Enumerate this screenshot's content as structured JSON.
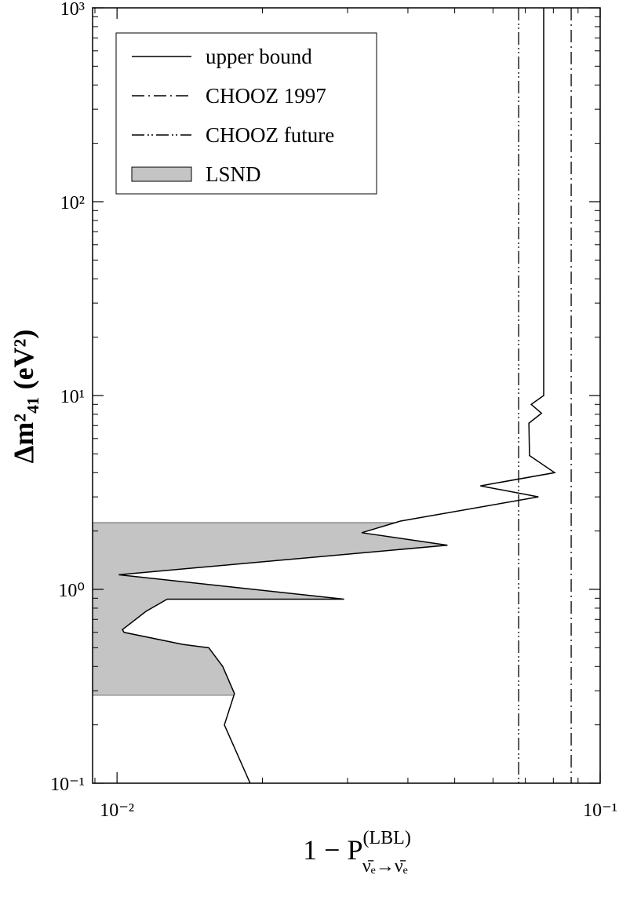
{
  "chart_data": {
    "type": "line",
    "x_label": {
      "text": "1 − P",
      "superscript": "(LBL)",
      "subscript": "ν̄ₑ→ν̄ₑ"
    },
    "y_label": "Δm²₄₁ (eV²)",
    "xscale": "log",
    "yscale": "log",
    "xlim": [
      0.0089,
      0.1
    ],
    "ylim": [
      0.1,
      1000
    ],
    "xticks": [
      {
        "value": 0.01,
        "label": "10⁻²"
      },
      {
        "value": 0.1,
        "label": "10⁻¹"
      }
    ],
    "yticks": [
      {
        "value": 0.1,
        "label": "10⁻¹"
      },
      {
        "value": 1,
        "label": "10⁰"
      },
      {
        "value": 10,
        "label": "10¹"
      },
      {
        "value": 100,
        "label": "10²"
      },
      {
        "value": 1000,
        "label": "10³"
      }
    ],
    "xminor": [
      0.009,
      0.02,
      0.03,
      0.04,
      0.05,
      0.06,
      0.07,
      0.08,
      0.09
    ],
    "yminor": [
      0.2,
      0.3,
      0.4,
      0.5,
      0.6,
      0.7,
      0.8,
      0.9,
      2,
      3,
      4,
      5,
      6,
      7,
      8,
      9,
      20,
      30,
      40,
      50,
      60,
      70,
      80,
      90,
      200,
      300,
      400,
      500,
      600,
      700,
      800,
      900
    ],
    "legend": "upper left",
    "series": [
      {
        "name": "upper bound",
        "color": "#000000",
        "style": "solid",
        "x": [
          0.01886,
          0.01668,
          0.0175,
          0.01655,
          0.01548,
          0.01368,
          0.01034,
          0.01026,
          0.01148,
          0.0127,
          0.0295,
          0.01008,
          0.0483,
          0.0321,
          0.0386,
          0.0745,
          0.0565,
          0.0805,
          0.0714,
          0.0712,
          0.0756,
          0.072,
          0.0764,
          0.0764
        ],
        "y": [
          0.1,
          0.2,
          0.29,
          0.4,
          0.5,
          0.52,
          0.6,
          0.62,
          0.77,
          0.89,
          0.89,
          1.19,
          1.69,
          1.96,
          2.25,
          3.0,
          3.42,
          4.0,
          4.9,
          7.2,
          8.1,
          9.0,
          10,
          1000
        ]
      },
      {
        "name": "CHOOZ 1997",
        "color": "#000000",
        "style": "dash-dot",
        "xvalue": 0.0871
      },
      {
        "name": "CHOOZ future",
        "color": "#000000",
        "style": "dash-dot-dot",
        "xvalue": 0.0678
      },
      {
        "name": "LSND",
        "color": "#c4c4c4",
        "style": "band",
        "range": [
          0.284,
          2.21
        ]
      }
    ]
  }
}
